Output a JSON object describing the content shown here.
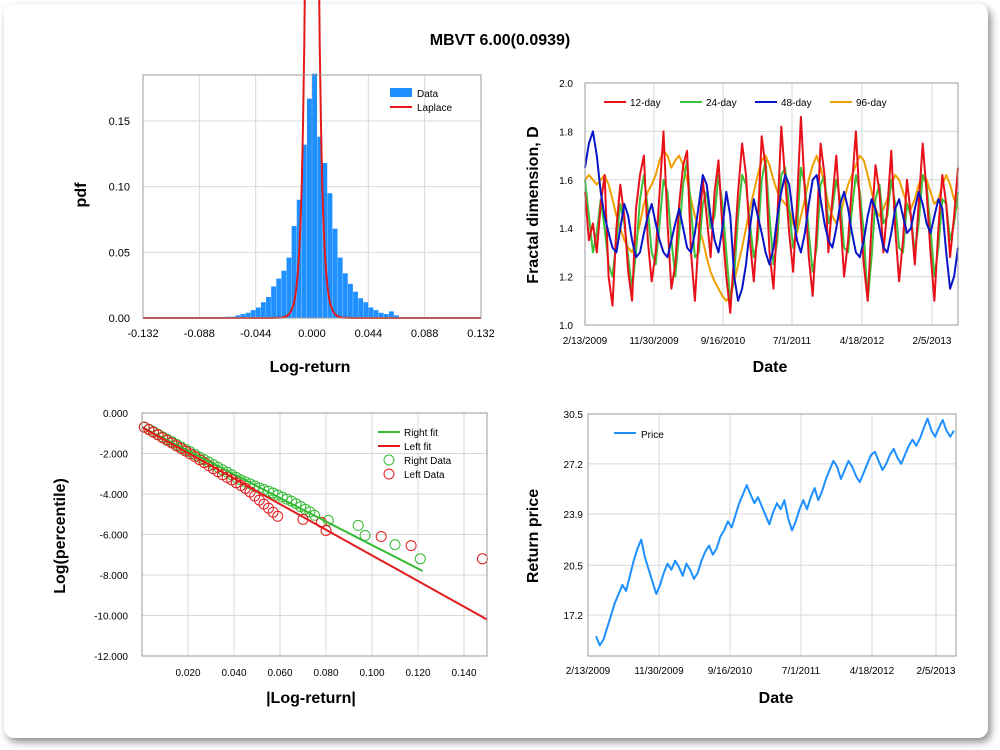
{
  "title": "MBVT 6.00(0.0939)",
  "colors": {
    "bar": "#1e90ff",
    "laplace": "#e31a1c",
    "d12": "#e8111a",
    "d24": "#3cc33c",
    "d48": "#0a14c8",
    "d96": "#f0a000",
    "right": "#33bb33",
    "left": "#e31a1c",
    "price": "#1e90ff",
    "grid": "#d9d9d9"
  },
  "chart_data": [
    {
      "type": "bar",
      "panel": "histogram",
      "xlabel": "Log-return",
      "ylabel": "pdf",
      "xlim": [
        -0.132,
        0.132
      ],
      "ylim": [
        0,
        0.185
      ],
      "x_ticks": [
        "-0.132",
        "-0.088",
        "-0.044",
        "0.000",
        "0.044",
        "0.088",
        "0.132"
      ],
      "y_ticks": [
        "0.00",
        "0.05",
        "0.10",
        "0.15"
      ],
      "legend": [
        "Data",
        "Laplace"
      ],
      "legend_position": "top-right",
      "bin_centers": [
        -0.066,
        -0.062,
        -0.058,
        -0.054,
        -0.05,
        -0.046,
        -0.042,
        -0.038,
        -0.034,
        -0.03,
        -0.026,
        -0.022,
        -0.018,
        -0.014,
        -0.01,
        -0.006,
        -0.002,
        0.002,
        0.006,
        0.01,
        0.014,
        0.018,
        0.022,
        0.026,
        0.03,
        0.034,
        0.038,
        0.042,
        0.046,
        0.05,
        0.054,
        0.058,
        0.062,
        0.066
      ],
      "values": [
        0.001,
        0.001,
        0.002,
        0.003,
        0.004,
        0.006,
        0.008,
        0.012,
        0.016,
        0.024,
        0.03,
        0.036,
        0.046,
        0.07,
        0.09,
        0.132,
        0.167,
        0.186,
        0.138,
        0.118,
        0.095,
        0.068,
        0.046,
        0.034,
        0.026,
        0.02,
        0.015,
        0.012,
        0.008,
        0.006,
        0.004,
        0.003,
        0.005,
        0.002
      ],
      "laplace_mu": 0.0,
      "laplace_b": 0.0028
    },
    {
      "type": "line",
      "panel": "fractal",
      "xlabel": "Date",
      "ylabel": "Fractal dimension, D",
      "ylim": [
        1.0,
        2.0
      ],
      "x_ticks": [
        "2/13/2009",
        "11/30/2009",
        "9/16/2010",
        "7/1/2011",
        "4/18/2012",
        "2/5/2013"
      ],
      "y_ticks": [
        "1.0",
        "1.2",
        "1.4",
        "1.6",
        "1.8",
        "2.0"
      ],
      "legend_position": "top",
      "series": [
        {
          "name": "12-day",
          "values": [
            1.55,
            1.35,
            1.42,
            1.3,
            1.5,
            1.62,
            1.2,
            1.08,
            1.4,
            1.58,
            1.45,
            1.22,
            1.1,
            1.48,
            1.62,
            1.7,
            1.35,
            1.18,
            1.3,
            1.55,
            1.8,
            1.42,
            1.15,
            1.25,
            1.5,
            1.66,
            1.72,
            1.3,
            1.1,
            1.38,
            1.6,
            1.45,
            1.28,
            1.55,
            1.68,
            1.4,
            1.2,
            1.05,
            1.3,
            1.55,
            1.75,
            1.62,
            1.35,
            1.18,
            1.42,
            1.78,
            1.65,
            1.3,
            1.15,
            1.45,
            1.82,
            1.6,
            1.38,
            1.22,
            1.5,
            1.86,
            1.55,
            1.28,
            1.12,
            1.4,
            1.75,
            1.62,
            1.3,
            1.52,
            1.7,
            1.45,
            1.2,
            1.35,
            1.58,
            1.8,
            1.5,
            1.25,
            1.1,
            1.42,
            1.66,
            1.55,
            1.3,
            1.48,
            1.72,
            1.4,
            1.18,
            1.35,
            1.6,
            1.45,
            1.25,
            1.5,
            1.75,
            1.55,
            1.3,
            1.1,
            1.4,
            1.62,
            1.5,
            1.28,
            1.45,
            1.65
          ]
        },
        {
          "name": "24-day",
          "values": [
            1.6,
            1.45,
            1.3,
            1.38,
            1.52,
            1.4,
            1.25,
            1.2,
            1.35,
            1.5,
            1.42,
            1.28,
            1.15,
            1.3,
            1.52,
            1.62,
            1.48,
            1.3,
            1.25,
            1.42,
            1.6,
            1.55,
            1.35,
            1.2,
            1.38,
            1.58,
            1.68,
            1.48,
            1.28,
            1.3,
            1.5,
            1.55,
            1.4,
            1.45,
            1.62,
            1.5,
            1.3,
            1.1,
            1.2,
            1.45,
            1.62,
            1.58,
            1.42,
            1.28,
            1.35,
            1.6,
            1.68,
            1.45,
            1.25,
            1.35,
            1.62,
            1.65,
            1.48,
            1.32,
            1.4,
            1.65,
            1.58,
            1.38,
            1.22,
            1.32,
            1.58,
            1.62,
            1.42,
            1.48,
            1.6,
            1.52,
            1.32,
            1.3,
            1.48,
            1.62,
            1.55,
            1.38,
            1.1,
            1.28,
            1.52,
            1.58,
            1.42,
            1.45,
            1.6,
            1.5,
            1.32,
            1.3,
            1.5,
            1.45,
            1.3,
            1.42,
            1.62,
            1.58,
            1.4,
            1.2,
            1.32,
            1.52,
            1.5,
            1.35,
            1.42,
            1.55
          ]
        },
        {
          "name": "48-day",
          "values": [
            1.65,
            1.75,
            1.8,
            1.7,
            1.55,
            1.45,
            1.38,
            1.32,
            1.3,
            1.4,
            1.5,
            1.45,
            1.35,
            1.28,
            1.3,
            1.38,
            1.45,
            1.5,
            1.42,
            1.35,
            1.3,
            1.28,
            1.35,
            1.42,
            1.48,
            1.4,
            1.32,
            1.3,
            1.38,
            1.5,
            1.62,
            1.58,
            1.45,
            1.35,
            1.3,
            1.4,
            1.55,
            1.45,
            1.2,
            1.1,
            1.15,
            1.25,
            1.4,
            1.52,
            1.45,
            1.38,
            1.3,
            1.25,
            1.32,
            1.45,
            1.55,
            1.62,
            1.58,
            1.45,
            1.35,
            1.3,
            1.38,
            1.5,
            1.6,
            1.62,
            1.52,
            1.42,
            1.35,
            1.32,
            1.4,
            1.5,
            1.55,
            1.48,
            1.38,
            1.3,
            1.28,
            1.35,
            1.45,
            1.52,
            1.48,
            1.4,
            1.32,
            1.3,
            1.38,
            1.48,
            1.52,
            1.45,
            1.38,
            1.4,
            1.48,
            1.55,
            1.5,
            1.42,
            1.38,
            1.45,
            1.52,
            1.48,
            1.3,
            1.15,
            1.2,
            1.32
          ]
        },
        {
          "name": "96-day",
          "values": [
            1.6,
            1.62,
            1.6,
            1.58,
            1.6,
            1.62,
            1.58,
            1.52,
            1.45,
            1.4,
            1.35,
            1.32,
            1.3,
            1.35,
            1.42,
            1.5,
            1.55,
            1.58,
            1.62,
            1.68,
            1.72,
            1.7,
            1.65,
            1.68,
            1.7,
            1.66,
            1.6,
            1.52,
            1.45,
            1.4,
            1.35,
            1.28,
            1.22,
            1.18,
            1.15,
            1.12,
            1.1,
            1.12,
            1.18,
            1.25,
            1.32,
            1.4,
            1.48,
            1.55,
            1.62,
            1.68,
            1.7,
            1.66,
            1.6,
            1.55,
            1.52,
            1.5,
            1.48,
            1.42,
            1.38,
            1.45,
            1.52,
            1.6,
            1.66,
            1.7,
            1.65,
            1.58,
            1.5,
            1.45,
            1.42,
            1.45,
            1.52,
            1.58,
            1.62,
            1.66,
            1.7,
            1.68,
            1.62,
            1.55,
            1.48,
            1.45,
            1.48,
            1.52,
            1.58,
            1.62,
            1.6,
            1.55,
            1.5,
            1.48,
            1.52,
            1.58,
            1.62,
            1.6,
            1.55,
            1.5,
            1.52,
            1.58,
            1.62,
            1.58,
            1.52,
            1.48
          ]
        }
      ]
    },
    {
      "type": "scatter",
      "panel": "tail",
      "xlabel": "|Log-return|",
      "ylabel": "Log(percentile)",
      "xlim": [
        0.0,
        0.15
      ],
      "ylim": [
        -12.0,
        0.0
      ],
      "x_ticks": [
        "0.020",
        "0.040",
        "0.060",
        "0.080",
        "0.100",
        "0.120",
        "0.140"
      ],
      "y_ticks": [
        "0.000",
        "-2.000",
        "-4.000",
        "-6.000",
        "-8.000",
        "-10.000",
        "-12.000"
      ],
      "legend": [
        "Right fit",
        "Left fit",
        "Right Data",
        "Left Data"
      ],
      "legend_position": "top-right",
      "right_fit": {
        "x": [
          0.0,
          0.122
        ],
        "y": [
          -0.7,
          -7.8
        ]
      },
      "left_fit": {
        "x": [
          0.0,
          0.15
        ],
        "y": [
          -0.7,
          -10.2
        ]
      },
      "right_data": {
        "x": [
          0.001,
          0.003,
          0.005,
          0.007,
          0.009,
          0.011,
          0.013,
          0.015,
          0.017,
          0.019,
          0.021,
          0.023,
          0.025,
          0.027,
          0.029,
          0.031,
          0.033,
          0.035,
          0.037,
          0.039,
          0.041,
          0.043,
          0.045,
          0.047,
          0.049,
          0.051,
          0.053,
          0.055,
          0.057,
          0.059,
          0.061,
          0.063,
          0.065,
          0.067,
          0.069,
          0.071,
          0.073,
          0.075,
          0.081,
          0.094,
          0.097,
          0.11,
          0.121
        ],
        "y": [
          -0.7,
          -0.8,
          -0.92,
          -1.05,
          -1.18,
          -1.3,
          -1.42,
          -1.55,
          -1.68,
          -1.8,
          -1.92,
          -2.05,
          -2.18,
          -2.3,
          -2.42,
          -2.55,
          -2.68,
          -2.8,
          -2.92,
          -3.05,
          -3.18,
          -3.3,
          -3.4,
          -3.5,
          -3.6,
          -3.7,
          -3.78,
          -3.86,
          -3.95,
          -4.05,
          -4.15,
          -4.25,
          -4.35,
          -4.48,
          -4.62,
          -4.75,
          -4.88,
          -5.05,
          -5.3,
          -5.55,
          -6.05,
          -6.5,
          -7.2
        ]
      },
      "left_data": {
        "x": [
          0.001,
          0.003,
          0.005,
          0.007,
          0.009,
          0.011,
          0.013,
          0.015,
          0.017,
          0.019,
          0.021,
          0.023,
          0.025,
          0.027,
          0.029,
          0.031,
          0.033,
          0.035,
          0.037,
          0.039,
          0.041,
          0.043,
          0.045,
          0.047,
          0.049,
          0.051,
          0.053,
          0.055,
          0.057,
          0.059,
          0.07,
          0.078,
          0.08,
          0.104,
          0.117,
          0.148
        ],
        "y": [
          -0.7,
          -0.82,
          -0.95,
          -1.08,
          -1.22,
          -1.35,
          -1.48,
          -1.62,
          -1.75,
          -1.88,
          -2.02,
          -2.15,
          -2.3,
          -2.45,
          -2.6,
          -2.75,
          -2.9,
          -3.05,
          -3.18,
          -3.3,
          -3.45,
          -3.58,
          -3.72,
          -3.9,
          -4.1,
          -4.3,
          -4.5,
          -4.7,
          -4.9,
          -5.1,
          -5.25,
          -5.4,
          -5.8,
          -6.1,
          -6.55,
          -7.2
        ]
      }
    },
    {
      "type": "line",
      "panel": "price",
      "xlabel": "Date",
      "ylabel": "Return price",
      "ylim": [
        14.5,
        30.5
      ],
      "x_ticks": [
        "2/13/2009",
        "11/30/2009",
        "9/16/2010",
        "7/1/2011",
        "4/18/2012",
        "2/5/2013"
      ],
      "y_ticks": [
        "17.2",
        "20.5",
        "23.9",
        "27.2",
        "30.5"
      ],
      "legend_position": "top-left",
      "series": [
        {
          "name": "Price",
          "values": [
            15.8,
            15.2,
            15.6,
            16.4,
            17.2,
            18.0,
            18.6,
            19.2,
            18.8,
            19.8,
            20.8,
            21.6,
            22.2,
            21.0,
            20.2,
            19.4,
            18.6,
            19.2,
            20.0,
            20.6,
            20.2,
            20.8,
            20.4,
            19.8,
            20.6,
            20.2,
            19.6,
            20.0,
            20.8,
            21.4,
            21.8,
            21.2,
            21.6,
            22.4,
            22.8,
            23.4,
            23.0,
            23.8,
            24.6,
            25.2,
            25.8,
            25.2,
            24.6,
            25.0,
            24.4,
            23.8,
            23.2,
            24.0,
            24.6,
            24.2,
            24.8,
            23.6,
            22.8,
            23.4,
            24.2,
            24.8,
            24.2,
            25.0,
            25.6,
            24.8,
            25.4,
            26.2,
            26.8,
            27.4,
            27.0,
            26.2,
            26.8,
            27.4,
            27.0,
            26.4,
            26.0,
            26.6,
            27.2,
            27.8,
            28.0,
            27.4,
            26.8,
            27.2,
            27.8,
            28.2,
            27.6,
            27.2,
            27.8,
            28.4,
            28.8,
            28.4,
            28.9,
            29.6,
            30.2,
            29.4,
            29.0,
            29.6,
            30.1,
            29.4,
            29.0,
            29.4
          ]
        }
      ]
    }
  ]
}
